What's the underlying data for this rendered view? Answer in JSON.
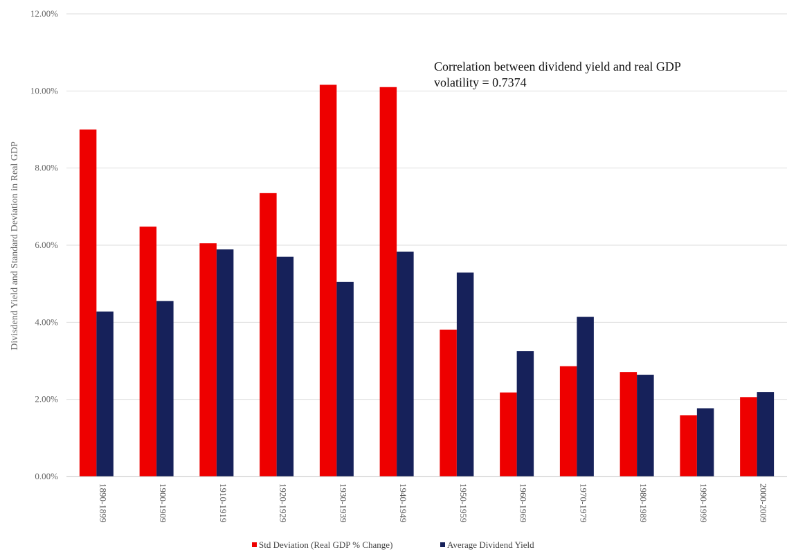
{
  "chart_data": {
    "type": "bar",
    "categories": [
      "1890-1899",
      "1900-1909",
      "1910-1919",
      "1920-1929",
      "1930-1939",
      "1940-1949",
      "1950-1959",
      "1960-1969",
      "1970-1979",
      "1980-1989",
      "1990-1999",
      "2000-2009"
    ],
    "series": [
      {
        "name": "Std Deviation (Real GDP % Change)",
        "color": "#ee0000",
        "values": [
          9.0,
          6.48,
          6.05,
          7.35,
          10.16,
          10.1,
          3.81,
          2.18,
          2.86,
          2.71,
          1.59,
          2.06
        ]
      },
      {
        "name": "Average Dividend Yield",
        "color": "#16215a",
        "values": [
          4.28,
          4.55,
          5.89,
          5.7,
          5.05,
          5.83,
          5.29,
          3.25,
          4.14,
          2.64,
          1.77,
          2.19
        ]
      }
    ],
    "title": "",
    "xlabel": "",
    "ylabel": "Divisdend Yield and Standard Deviation in Real GDP",
    "ylim": [
      0,
      12
    ],
    "yticks": [
      "0.00%",
      "2.00%",
      "4.00%",
      "6.00%",
      "8.00%",
      "10.00%",
      "12.00%"
    ],
    "grid": true,
    "legend_position": "bottom",
    "annotation": {
      "line1": "Correlation between dividend yield and real GDP",
      "line2": "volatility = 0.7374"
    }
  }
}
